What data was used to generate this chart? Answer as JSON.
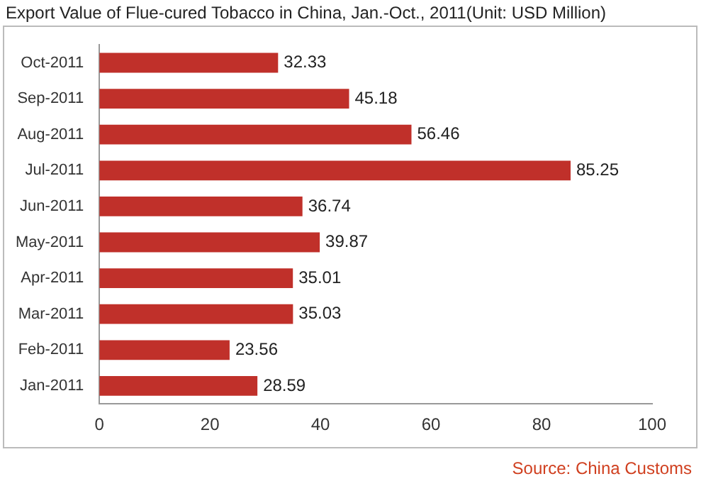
{
  "chart_data": {
    "type": "bar",
    "orientation": "horizontal",
    "title": "Export Value of Flue-cured  Tobacco in China, Jan.-Oct., 2011(Unit:  USD Million)",
    "categories": [
      "Oct-2011",
      "Sep-2011",
      "Aug-2011",
      "Jul-2011",
      "Jun-2011",
      "May-2011",
      "Apr-2011",
      "Mar-2011",
      "Feb-2011",
      "Jan-2011"
    ],
    "values": [
      32.33,
      45.18,
      56.46,
      85.25,
      36.74,
      39.87,
      35.01,
      35.03,
      23.56,
      28.59
    ],
    "color": "#c0302a",
    "xlim": [
      0,
      100
    ],
    "xticks": [
      0,
      20,
      40,
      60,
      80,
      100
    ],
    "data_labels": true,
    "grid": false,
    "legend": false,
    "annotations": [
      "Source:  China Customs"
    ]
  }
}
